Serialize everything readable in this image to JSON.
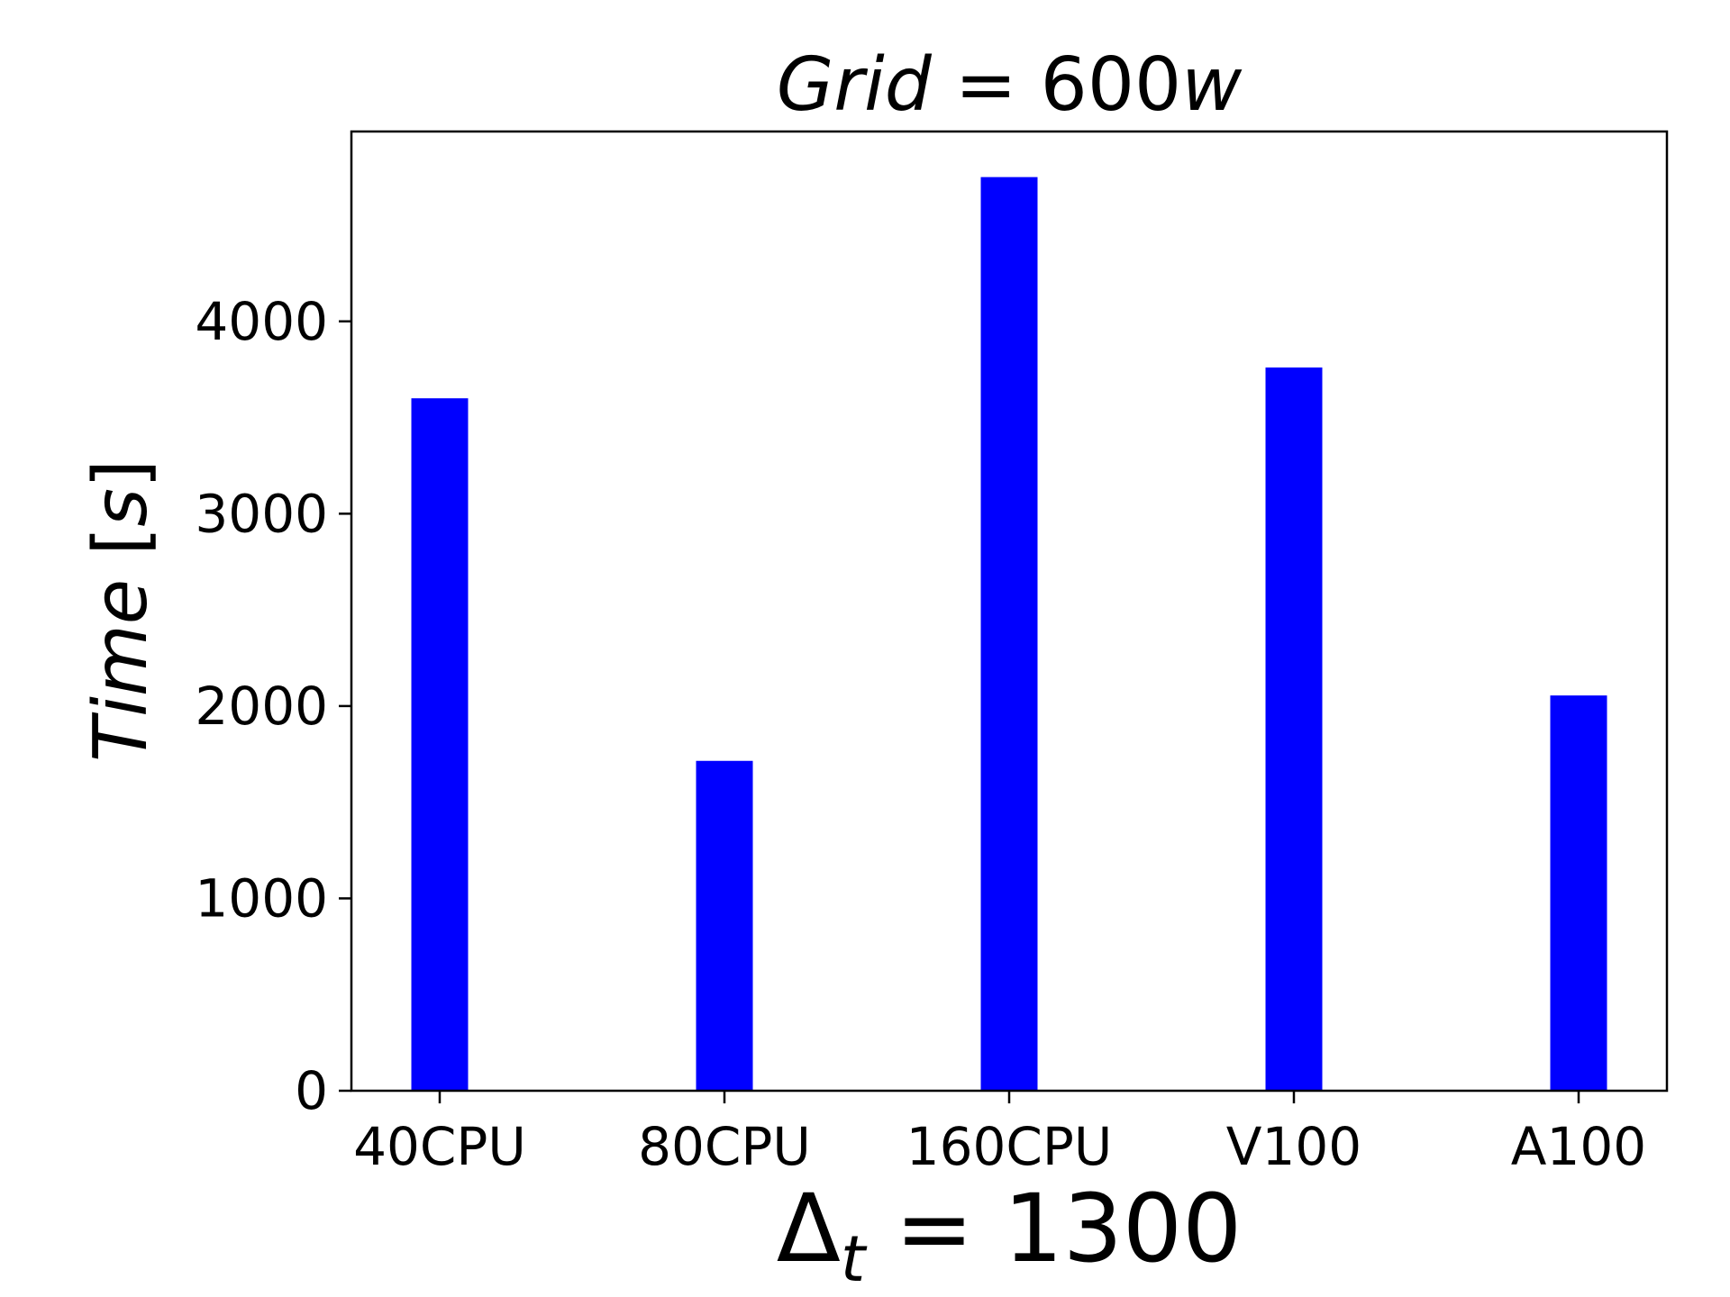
{
  "chart_data": {
    "type": "bar",
    "title": "Grid = 600w",
    "xlabel": "Δt = 1300",
    "ylabel": "Time [s]",
    "categories": [
      "40CPU",
      "80CPU",
      "160CPU",
      "V100",
      "A100"
    ],
    "values": [
      3600,
      1715,
      4750,
      3760,
      2055
    ],
    "ylim": [
      0,
      4987
    ],
    "yticks": [
      0,
      1000,
      2000,
      3000,
      4000
    ],
    "bar_color": "#0000ff",
    "grid": false,
    "legend": "none"
  }
}
